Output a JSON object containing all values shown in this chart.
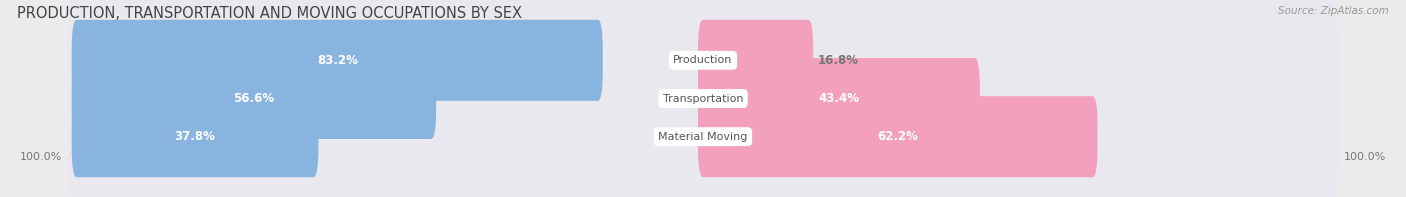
{
  "title": "PRODUCTION, TRANSPORTATION AND MOVING OCCUPATIONS BY SEX",
  "source_text": "Source: ZipAtlas.com",
  "categories": [
    "Production",
    "Transportation",
    "Material Moving"
  ],
  "male_pcts": [
    83.2,
    56.6,
    37.8
  ],
  "female_pcts": [
    16.8,
    43.4,
    62.2
  ],
  "male_color": "#8ab4e0",
  "female_color": "#f2a0bb",
  "label_inside_color": "#ffffff",
  "label_outside_color": "#777777",
  "category_label_color": "#555555",
  "background_color": "#ebebeb",
  "bar_background": "#e0e0e8",
  "row_background": "#e8e8ee",
  "title_fontsize": 10.5,
  "source_fontsize": 7.5,
  "bar_label_fontsize": 8.5,
  "cat_label_fontsize": 8,
  "axis_label_fontsize": 8,
  "bar_height": 0.52,
  "xlim_left": -110,
  "xlim_right": 110
}
